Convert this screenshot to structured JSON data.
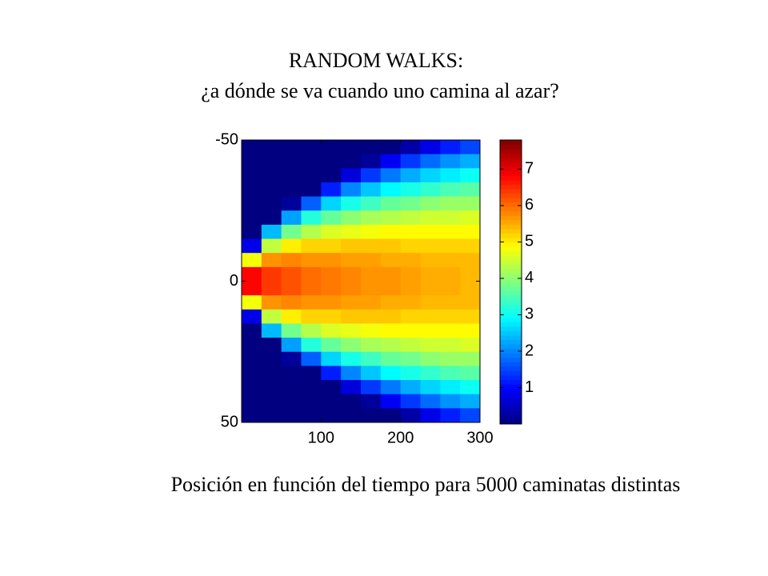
{
  "chart_data": {
    "type": "heatmap",
    "title": "RANDOM WALKS:",
    "subtitle": "¿a dónde se va cuando uno camina al azar?",
    "caption": "Posición en función del tiempo para 5000 caminatas distintas",
    "colormap": "jet",
    "x": [
      12.5,
      37.5,
      62.5,
      87.5,
      112.5,
      137.5,
      162.5,
      187.5,
      212.5,
      237.5,
      262.5,
      287.5
    ],
    "y": [
      -47.5,
      -42.5,
      -37.5,
      -32.5,
      -27.5,
      -22.5,
      -17.5,
      -12.5,
      -7.5,
      -2.5,
      2.5,
      7.5,
      12.5,
      17.5,
      22.5,
      27.5,
      32.5,
      37.5,
      42.5,
      47.5
    ],
    "z": [
      [
        0,
        0,
        0,
        0,
        0,
        0,
        0,
        0,
        0.3,
        0.8,
        1.2,
        1.5
      ],
      [
        0,
        0,
        0,
        0,
        0,
        0,
        0.2,
        0.9,
        1.4,
        1.8,
        2.1,
        2.3
      ],
      [
        0,
        0,
        0,
        0,
        0,
        0.7,
        1.4,
        1.9,
        2.3,
        2.6,
        2.8,
        3.0
      ],
      [
        0,
        0,
        0,
        0,
        1.2,
        2.0,
        2.5,
        2.9,
        3.1,
        3.3,
        3.5,
        3.6
      ],
      [
        0,
        0,
        0.2,
        1.7,
        2.6,
        3.1,
        3.4,
        3.7,
        3.8,
        4.0,
        4.1,
        4.1
      ],
      [
        0,
        0,
        2.2,
        3.2,
        3.7,
        4.0,
        4.2,
        4.3,
        4.4,
        4.5,
        4.5,
        4.6
      ],
      [
        0,
        2.4,
        3.8,
        4.3,
        4.6,
        4.7,
        4.8,
        4.9,
        4.9,
        4.9,
        4.9,
        4.9
      ],
      [
        0.8,
        4.4,
        5.0,
        5.2,
        5.2,
        5.3,
        5.3,
        5.3,
        5.2,
        5.2,
        5.2,
        5.2
      ],
      [
        4.8,
        5.7,
        5.8,
        5.7,
        5.7,
        5.6,
        5.6,
        5.5,
        5.5,
        5.4,
        5.4,
        5.4
      ],
      [
        6.8,
        6.4,
        6.2,
        6.0,
        5.9,
        5.8,
        5.7,
        5.7,
        5.6,
        5.5,
        5.5,
        5.4
      ],
      [
        6.8,
        6.4,
        6.2,
        6.0,
        5.9,
        5.8,
        5.7,
        5.7,
        5.6,
        5.5,
        5.5,
        5.4
      ],
      [
        4.8,
        5.7,
        5.8,
        5.7,
        5.7,
        5.6,
        5.6,
        5.5,
        5.5,
        5.4,
        5.4,
        5.4
      ],
      [
        0.8,
        4.4,
        5.0,
        5.2,
        5.2,
        5.3,
        5.3,
        5.3,
        5.2,
        5.2,
        5.2,
        5.2
      ],
      [
        0,
        2.4,
        3.8,
        4.3,
        4.6,
        4.7,
        4.8,
        4.9,
        4.9,
        4.9,
        4.9,
        4.9
      ],
      [
        0,
        0,
        2.2,
        3.2,
        3.7,
        4.0,
        4.2,
        4.3,
        4.4,
        4.5,
        4.5,
        4.6
      ],
      [
        0,
        0,
        0.2,
        1.7,
        2.6,
        3.1,
        3.4,
        3.7,
        3.8,
        4.0,
        4.1,
        4.1
      ],
      [
        0,
        0,
        0,
        0,
        1.2,
        2.0,
        2.5,
        2.9,
        3.1,
        3.3,
        3.5,
        3.6
      ],
      [
        0,
        0,
        0,
        0,
        0,
        0.7,
        1.4,
        1.9,
        2.3,
        2.6,
        2.8,
        3.0
      ],
      [
        0,
        0,
        0,
        0,
        0,
        0,
        0.2,
        0.9,
        1.4,
        1.8,
        2.1,
        2.3
      ],
      [
        0,
        0,
        0,
        0,
        0,
        0,
        0,
        0,
        0.3,
        0.8,
        1.2,
        1.5
      ]
    ],
    "xlim": [
      0,
      300
    ],
    "xticks": [
      100,
      200,
      300
    ],
    "ylim": [
      -50,
      50
    ],
    "yticks": [
      -50,
      0,
      50
    ],
    "y_inverted": true,
    "clim": [
      0,
      7.8
    ],
    "cticks": [
      1,
      2,
      3,
      4,
      5,
      6,
      7
    ]
  }
}
